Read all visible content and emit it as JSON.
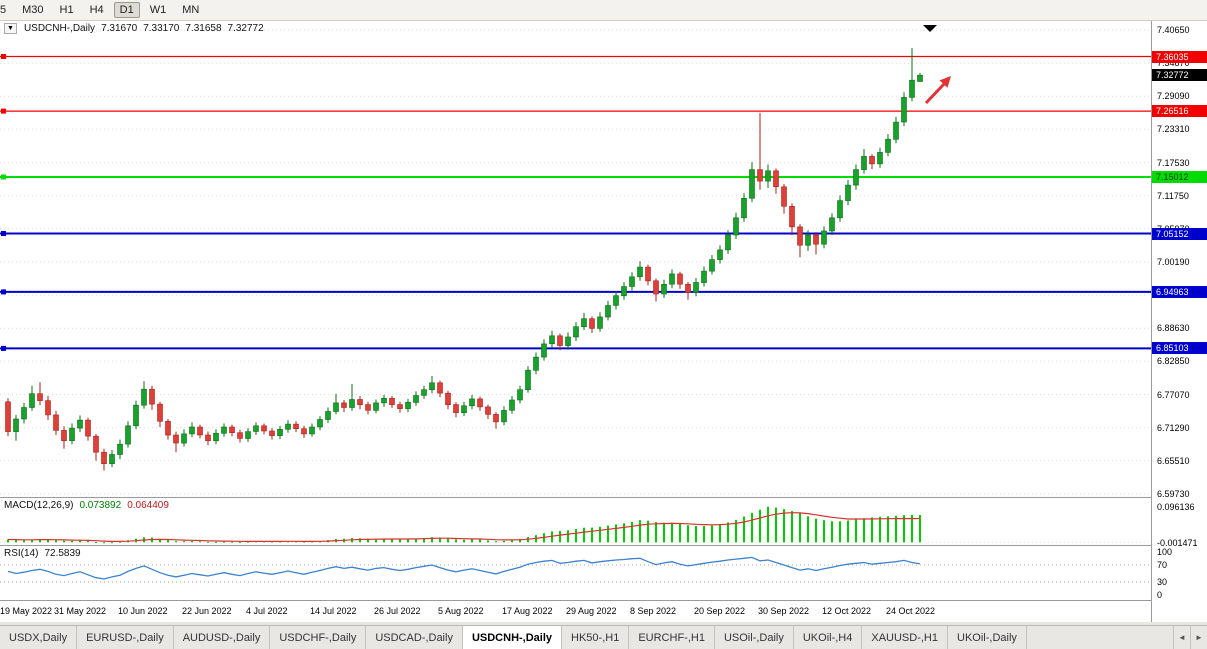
{
  "toolbar": {
    "timeframes": [
      "5",
      "M30",
      "H1",
      "H4",
      "D1",
      "W1",
      "MN"
    ],
    "active_timeframe": "D1"
  },
  "chart_data": {
    "type": "candlestick",
    "symbol": "USDCNH",
    "period": "Daily",
    "title": {
      "symbol": "USDCNH-,Daily",
      "open": "7.31670",
      "high": "7.33170",
      "low": "7.31658",
      "close": "7.32772"
    },
    "y_axis_labels": [
      "7.40650",
      "7.34870",
      "7.29090",
      "7.23310",
      "7.17530",
      "7.11750",
      "7.05970",
      "7.00190",
      "6.94410",
      "6.88630",
      "6.82850",
      "6.77070",
      "6.71290",
      "6.65510",
      "6.59730"
    ],
    "y_range": [
      6.5901,
      7.4223
    ],
    "up_color": "#18a22b",
    "up_border": "#0b6d18",
    "down_color": "#de3f38",
    "down_border": "#a7231d",
    "grid_color": "#dedede",
    "hlines": [
      {
        "price": 7.36035,
        "label": "7.36035",
        "color": "#f20000",
        "text_color": "#ffffff",
        "width": 1.2
      },
      {
        "price": 7.26516,
        "label": "7.26516",
        "color": "#f20000",
        "text_color": "#ffffff",
        "width": 1.2
      },
      {
        "price": 7.15012,
        "label": "7.15012",
        "color": "#00dc00",
        "text_color": "#063306",
        "width": 2
      },
      {
        "price": 7.05152,
        "label": "7.05152",
        "color": "#0000cd",
        "text_color": "#ffffff",
        "width": 2
      },
      {
        "price": 6.94963,
        "label": "6.94963",
        "color": "#0000cd",
        "text_color": "#ffffff",
        "width": 2
      },
      {
        "price": 6.85103,
        "label": "6.85103",
        "color": "#0000cd",
        "text_color": "#ffffff",
        "width": 2
      }
    ],
    "price_marker": {
      "price": 7.32772,
      "label": "7.32772",
      "bg": "#000000",
      "text_color": "#ffffff"
    },
    "annotations": {
      "arrow_color": "#e13434",
      "marker_color": "#000000"
    },
    "x_ticks": [
      {
        "i": 1,
        "label": "19 May 2022"
      },
      {
        "i": 9,
        "label": "31 May 2022"
      },
      {
        "i": 17,
        "label": "10 Jun 2022"
      },
      {
        "i": 25,
        "label": "22 Jun 2022"
      },
      {
        "i": 33,
        "label": "4 Jul 2022"
      },
      {
        "i": 41,
        "label": "14 Jul 2022"
      },
      {
        "i": 49,
        "label": "26 Jul 2022"
      },
      {
        "i": 57,
        "label": "5 Aug 2022"
      },
      {
        "i": 65,
        "label": "17 Aug 2022"
      },
      {
        "i": 73,
        "label": "29 Aug 2022"
      },
      {
        "i": 81,
        "label": "8 Sep 2022"
      },
      {
        "i": 89,
        "label": "20 Sep 2022"
      },
      {
        "i": 97,
        "label": "30 Sep 2022"
      },
      {
        "i": 105,
        "label": "12 Oct 2022"
      },
      {
        "i": 113,
        "label": "24 Oct 2022"
      }
    ],
    "candle_format": "o,h,l,c",
    "candles": [
      [
        6.758,
        6.764,
        6.698,
        6.706
      ],
      [
        6.706,
        6.735,
        6.69,
        6.728
      ],
      [
        6.728,
        6.756,
        6.72,
        6.748
      ],
      [
        6.748,
        6.786,
        6.742,
        6.772
      ],
      [
        6.772,
        6.792,
        6.752,
        6.76
      ],
      [
        6.76,
        6.768,
        6.726,
        6.735
      ],
      [
        6.735,
        6.742,
        6.7,
        6.708
      ],
      [
        6.708,
        6.715,
        6.676,
        6.69
      ],
      [
        6.69,
        6.72,
        6.684,
        6.712
      ],
      [
        6.712,
        6.734,
        6.705,
        6.726
      ],
      [
        6.726,
        6.73,
        6.69,
        6.698
      ],
      [
        6.698,
        6.702,
        6.655,
        6.67
      ],
      [
        6.67,
        6.676,
        6.638,
        6.65
      ],
      [
        6.65,
        6.674,
        6.644,
        6.666
      ],
      [
        6.666,
        6.692,
        6.658,
        6.684
      ],
      [
        6.684,
        6.724,
        6.678,
        6.716
      ],
      [
        6.716,
        6.76,
        6.71,
        6.752
      ],
      [
        6.752,
        6.794,
        6.746,
        6.78
      ],
      [
        6.78,
        6.786,
        6.744,
        6.754
      ],
      [
        6.754,
        6.758,
        6.714,
        6.724
      ],
      [
        6.724,
        6.728,
        6.692,
        6.7
      ],
      [
        6.7,
        6.706,
        6.67,
        6.686
      ],
      [
        6.686,
        6.71,
        6.68,
        6.702
      ],
      [
        6.702,
        6.722,
        6.696,
        6.714
      ],
      [
        6.714,
        6.718,
        6.694,
        6.7
      ],
      [
        6.7,
        6.706,
        6.682,
        6.69
      ],
      [
        6.69,
        6.71,
        6.684,
        6.703
      ],
      [
        6.703,
        6.72,
        6.697,
        6.714
      ],
      [
        6.714,
        6.718,
        6.698,
        6.704
      ],
      [
        6.704,
        6.709,
        6.687,
        6.694
      ],
      [
        6.694,
        6.712,
        6.688,
        6.706
      ],
      [
        6.706,
        6.722,
        6.7,
        6.716
      ],
      [
        6.716,
        6.72,
        6.701,
        6.707
      ],
      [
        6.707,
        6.712,
        6.692,
        6.699
      ],
      [
        6.699,
        6.716,
        6.693,
        6.71
      ],
      [
        6.71,
        6.726,
        6.704,
        6.719
      ],
      [
        6.719,
        6.724,
        6.705,
        6.711
      ],
      [
        6.711,
        6.716,
        6.695,
        6.702
      ],
      [
        6.702,
        6.72,
        6.697,
        6.714
      ],
      [
        6.714,
        6.733,
        6.708,
        6.727
      ],
      [
        6.727,
        6.748,
        6.721,
        6.741
      ],
      [
        6.741,
        6.772,
        6.736,
        6.756
      ],
      [
        6.756,
        6.761,
        6.74,
        6.748
      ],
      [
        6.748,
        6.789,
        6.742,
        6.762
      ],
      [
        6.762,
        6.768,
        6.745,
        6.753
      ],
      [
        6.753,
        6.758,
        6.736,
        6.743
      ],
      [
        6.743,
        6.762,
        6.738,
        6.756
      ],
      [
        6.756,
        6.77,
        6.749,
        6.764
      ],
      [
        6.764,
        6.768,
        6.747,
        6.753
      ],
      [
        6.753,
        6.758,
        6.739,
        6.746
      ],
      [
        6.746,
        6.763,
        6.74,
        6.757
      ],
      [
        6.757,
        6.776,
        6.751,
        6.769
      ],
      [
        6.769,
        6.786,
        6.763,
        6.779
      ],
      [
        6.779,
        6.803,
        6.773,
        6.791
      ],
      [
        6.791,
        6.795,
        6.766,
        6.773
      ],
      [
        6.773,
        6.777,
        6.745,
        6.753
      ],
      [
        6.753,
        6.757,
        6.731,
        6.739
      ],
      [
        6.739,
        6.758,
        6.733,
        6.751
      ],
      [
        6.751,
        6.77,
        6.745,
        6.763
      ],
      [
        6.763,
        6.767,
        6.742,
        6.749
      ],
      [
        6.749,
        6.753,
        6.728,
        6.736
      ],
      [
        6.736,
        6.74,
        6.711,
        6.723
      ],
      [
        6.723,
        6.75,
        6.717,
        6.743
      ],
      [
        6.743,
        6.768,
        6.737,
        6.761
      ],
      [
        6.761,
        6.786,
        6.755,
        6.779
      ],
      [
        6.779,
        6.82,
        6.774,
        6.813
      ],
      [
        6.813,
        6.844,
        6.806,
        6.836
      ],
      [
        6.836,
        6.867,
        6.83,
        6.859
      ],
      [
        6.859,
        6.882,
        6.852,
        6.873
      ],
      [
        6.873,
        6.877,
        6.848,
        6.856
      ],
      [
        6.856,
        6.879,
        6.849,
        6.871
      ],
      [
        6.871,
        6.897,
        6.864,
        6.889
      ],
      [
        6.889,
        6.913,
        6.883,
        6.903
      ],
      [
        6.903,
        6.907,
        6.878,
        6.886
      ],
      [
        6.886,
        6.914,
        6.88,
        6.906
      ],
      [
        6.906,
        6.934,
        6.9,
        6.926
      ],
      [
        6.926,
        6.951,
        6.919,
        6.943
      ],
      [
        6.943,
        6.967,
        6.936,
        6.959
      ],
      [
        6.959,
        6.984,
        6.952,
        6.976
      ],
      [
        6.976,
        7.003,
        6.969,
        6.993
      ],
      [
        6.993,
        6.997,
        6.961,
        6.969
      ],
      [
        6.969,
        6.973,
        6.933,
        6.946
      ],
      [
        6.946,
        6.971,
        6.939,
        6.963
      ],
      [
        6.963,
        6.989,
        6.956,
        6.981
      ],
      [
        6.981,
        6.985,
        6.955,
        6.963
      ],
      [
        6.963,
        6.967,
        6.936,
        6.949
      ],
      [
        6.949,
        6.974,
        6.942,
        6.966
      ],
      [
        6.966,
        6.994,
        6.959,
        6.986
      ],
      [
        6.986,
        7.014,
        6.98,
        7.006
      ],
      [
        7.006,
        7.031,
        6.999,
        7.023
      ],
      [
        7.023,
        7.057,
        7.016,
        7.049
      ],
      [
        7.049,
        7.088,
        7.042,
        7.079
      ],
      [
        7.079,
        7.122,
        7.072,
        7.113
      ],
      [
        7.113,
        7.176,
        7.106,
        7.163
      ],
      [
        7.163,
        7.262,
        7.128,
        7.143
      ],
      [
        7.143,
        7.172,
        7.131,
        7.161
      ],
      [
        7.161,
        7.165,
        7.121,
        7.133
      ],
      [
        7.133,
        7.138,
        7.086,
        7.099
      ],
      [
        7.099,
        7.104,
        7.049,
        7.063
      ],
      [
        7.063,
        7.068,
        7.01,
        7.031
      ],
      [
        7.031,
        7.057,
        7.021,
        7.049
      ],
      [
        7.049,
        7.054,
        7.015,
        7.033
      ],
      [
        7.033,
        7.064,
        7.026,
        7.056
      ],
      [
        7.056,
        7.087,
        7.049,
        7.079
      ],
      [
        7.079,
        7.118,
        7.072,
        7.109
      ],
      [
        7.109,
        7.145,
        7.101,
        7.136
      ],
      [
        7.136,
        7.172,
        7.128,
        7.163
      ],
      [
        7.163,
        7.199,
        7.156,
        7.186
      ],
      [
        7.186,
        7.19,
        7.164,
        7.173
      ],
      [
        7.173,
        7.201,
        7.166,
        7.193
      ],
      [
        7.193,
        7.225,
        7.186,
        7.216
      ],
      [
        7.216,
        7.255,
        7.209,
        7.246
      ],
      [
        7.246,
        7.298,
        7.239,
        7.289
      ],
      [
        7.289,
        7.375,
        7.282,
        7.319
      ],
      [
        7.3167,
        7.3317,
        7.31658,
        7.32772
      ]
    ],
    "macd": {
      "name": "MACD(12,26,9)",
      "main_value": "0.073892",
      "signal_value": "0.064409",
      "range": [
        -0.01,
        0.12
      ],
      "axis_labels": [
        {
          "v": 0.096136,
          "label": "0.096136"
        },
        {
          "v": -0.001471,
          "label": "-0.001471"
        }
      ],
      "histogram_color": "#00cc00",
      "signal_color": "#d93030",
      "histogram": [
        0.008,
        0.0062,
        0.0055,
        0.0068,
        0.0085,
        0.0078,
        0.006,
        0.0042,
        0.0038,
        0.005,
        0.0032,
        0.0008,
        -0.0015,
        -0.0005,
        0.0018,
        0.0055,
        0.0098,
        0.0135,
        0.0128,
        0.0096,
        0.006,
        0.0032,
        0.0028,
        0.0035,
        0.0026,
        0.0014,
        0.0012,
        0.002,
        0.0022,
        0.0012,
        0.0018,
        0.0026,
        0.0028,
        0.0022,
        0.0024,
        0.003,
        0.0026,
        0.0018,
        0.0024,
        0.0038,
        0.006,
        0.0088,
        0.0098,
        0.0115,
        0.0108,
        0.0096,
        0.0098,
        0.0105,
        0.0098,
        0.0088,
        0.009,
        0.0102,
        0.0118,
        0.0138,
        0.013,
        0.0108,
        0.0082,
        0.007,
        0.0076,
        0.0072,
        0.0052,
        0.003,
        0.0038,
        0.006,
        0.0092,
        0.014,
        0.0192,
        0.0248,
        0.0295,
        0.0308,
        0.0325,
        0.0358,
        0.0395,
        0.0398,
        0.042,
        0.0452,
        0.0482,
        0.0515,
        0.0555,
        0.0598,
        0.0585,
        0.0548,
        0.053,
        0.0532,
        0.0502,
        0.0462,
        0.044,
        0.0442,
        0.046,
        0.0492,
        0.054,
        0.0608,
        0.07,
        0.08,
        0.088,
        0.0961,
        0.094,
        0.09,
        0.0845,
        0.078,
        0.0705,
        0.064,
        0.0598,
        0.0572,
        0.057,
        0.059,
        0.0618,
        0.065,
        0.0672,
        0.069,
        0.0705,
        0.0718,
        0.0735,
        0.0745,
        0.073892
      ],
      "signal": [
        0.0075,
        0.0072,
        0.0069,
        0.0069,
        0.0072,
        0.0073,
        0.0071,
        0.0065,
        0.006,
        0.0058,
        0.0053,
        0.0044,
        0.0033,
        0.0025,
        0.0024,
        0.003,
        0.0044,
        0.0062,
        0.0075,
        0.0079,
        0.0075,
        0.0067,
        0.0059,
        0.0054,
        0.0049,
        0.0042,
        0.0036,
        0.0032,
        0.003,
        0.0027,
        0.0025,
        0.0025,
        0.0026,
        0.0025,
        0.0025,
        0.0026,
        0.0026,
        0.0024,
        0.0024,
        0.0027,
        0.0034,
        0.0045,
        0.0055,
        0.0067,
        0.0075,
        0.0079,
        0.0083,
        0.0088,
        0.009,
        0.0089,
        0.0089,
        0.0092,
        0.0097,
        0.0105,
        0.011,
        0.011,
        0.0104,
        0.0097,
        0.0093,
        0.0089,
        0.0081,
        0.0071,
        0.0064,
        0.0064,
        0.0069,
        0.0083,
        0.0105,
        0.0134,
        0.0166,
        0.0194,
        0.0221,
        0.0248,
        0.0277,
        0.0301,
        0.0325,
        0.0351,
        0.0377,
        0.0404,
        0.0434,
        0.0467,
        0.0491,
        0.0502,
        0.0508,
        0.0513,
        0.051,
        0.0501,
        0.0489,
        0.0479,
        0.0475,
        0.0479,
        0.0491,
        0.0514,
        0.0551,
        0.0601,
        0.0657,
        0.0718,
        0.0762,
        0.079,
        0.0801,
        0.0797,
        0.0778,
        0.0745,
        0.071,
        0.0678,
        0.0652,
        0.0632,
        0.063,
        0.0632,
        0.0635,
        0.0638,
        0.064,
        0.0641,
        0.0642,
        0.0643,
        0.064409
      ]
    },
    "rsi": {
      "name": "RSI(14)",
      "value": "72.5839",
      "range": [
        -15,
        115
      ],
      "levels": [
        100,
        70,
        30,
        0
      ],
      "dotted_levels": [
        70,
        30
      ],
      "line_color": "#3b82d0",
      "values": [
        55,
        50,
        53,
        57,
        60,
        55,
        48,
        45,
        50,
        54,
        47,
        40,
        37,
        42,
        46,
        55,
        62,
        68,
        60,
        52,
        46,
        42,
        46,
        50,
        47,
        44,
        48,
        52,
        48,
        45,
        50,
        54,
        51,
        48,
        52,
        56,
        52,
        48,
        53,
        57,
        62,
        66,
        62,
        65,
        61,
        58,
        62,
        64,
        60,
        57,
        60,
        64,
        67,
        70,
        64,
        58,
        54,
        58,
        61,
        57,
        53,
        49,
        55,
        60,
        65,
        72,
        76,
        79,
        81,
        74,
        76,
        79,
        81,
        75,
        78,
        80,
        82,
        83,
        85,
        86,
        78,
        71,
        75,
        78,
        72,
        68,
        71,
        74,
        77,
        79,
        82,
        84,
        86,
        88,
        80,
        82,
        76,
        70,
        64,
        58,
        61,
        57,
        61,
        65,
        69,
        72,
        74,
        76,
        72,
        74,
        76,
        78,
        81,
        76,
        72.5839
      ]
    }
  },
  "bottom_tabs": {
    "tabs": [
      "USDX,Daily",
      "EURUSD-,Daily",
      "AUDUSD-,Daily",
      "USDCHF-,Daily",
      "USDCAD-,Daily",
      "USDCNH-,Daily",
      "HK50-,H1",
      "EURCHF-,H1",
      "USOil-,Daily",
      "UKOil-,H4",
      "XAUUSD-,H1",
      "UKOil-,Daily"
    ],
    "active": "USDCNH-,Daily",
    "scroll_left_icon": "◄",
    "scroll_right_icon": "►"
  }
}
